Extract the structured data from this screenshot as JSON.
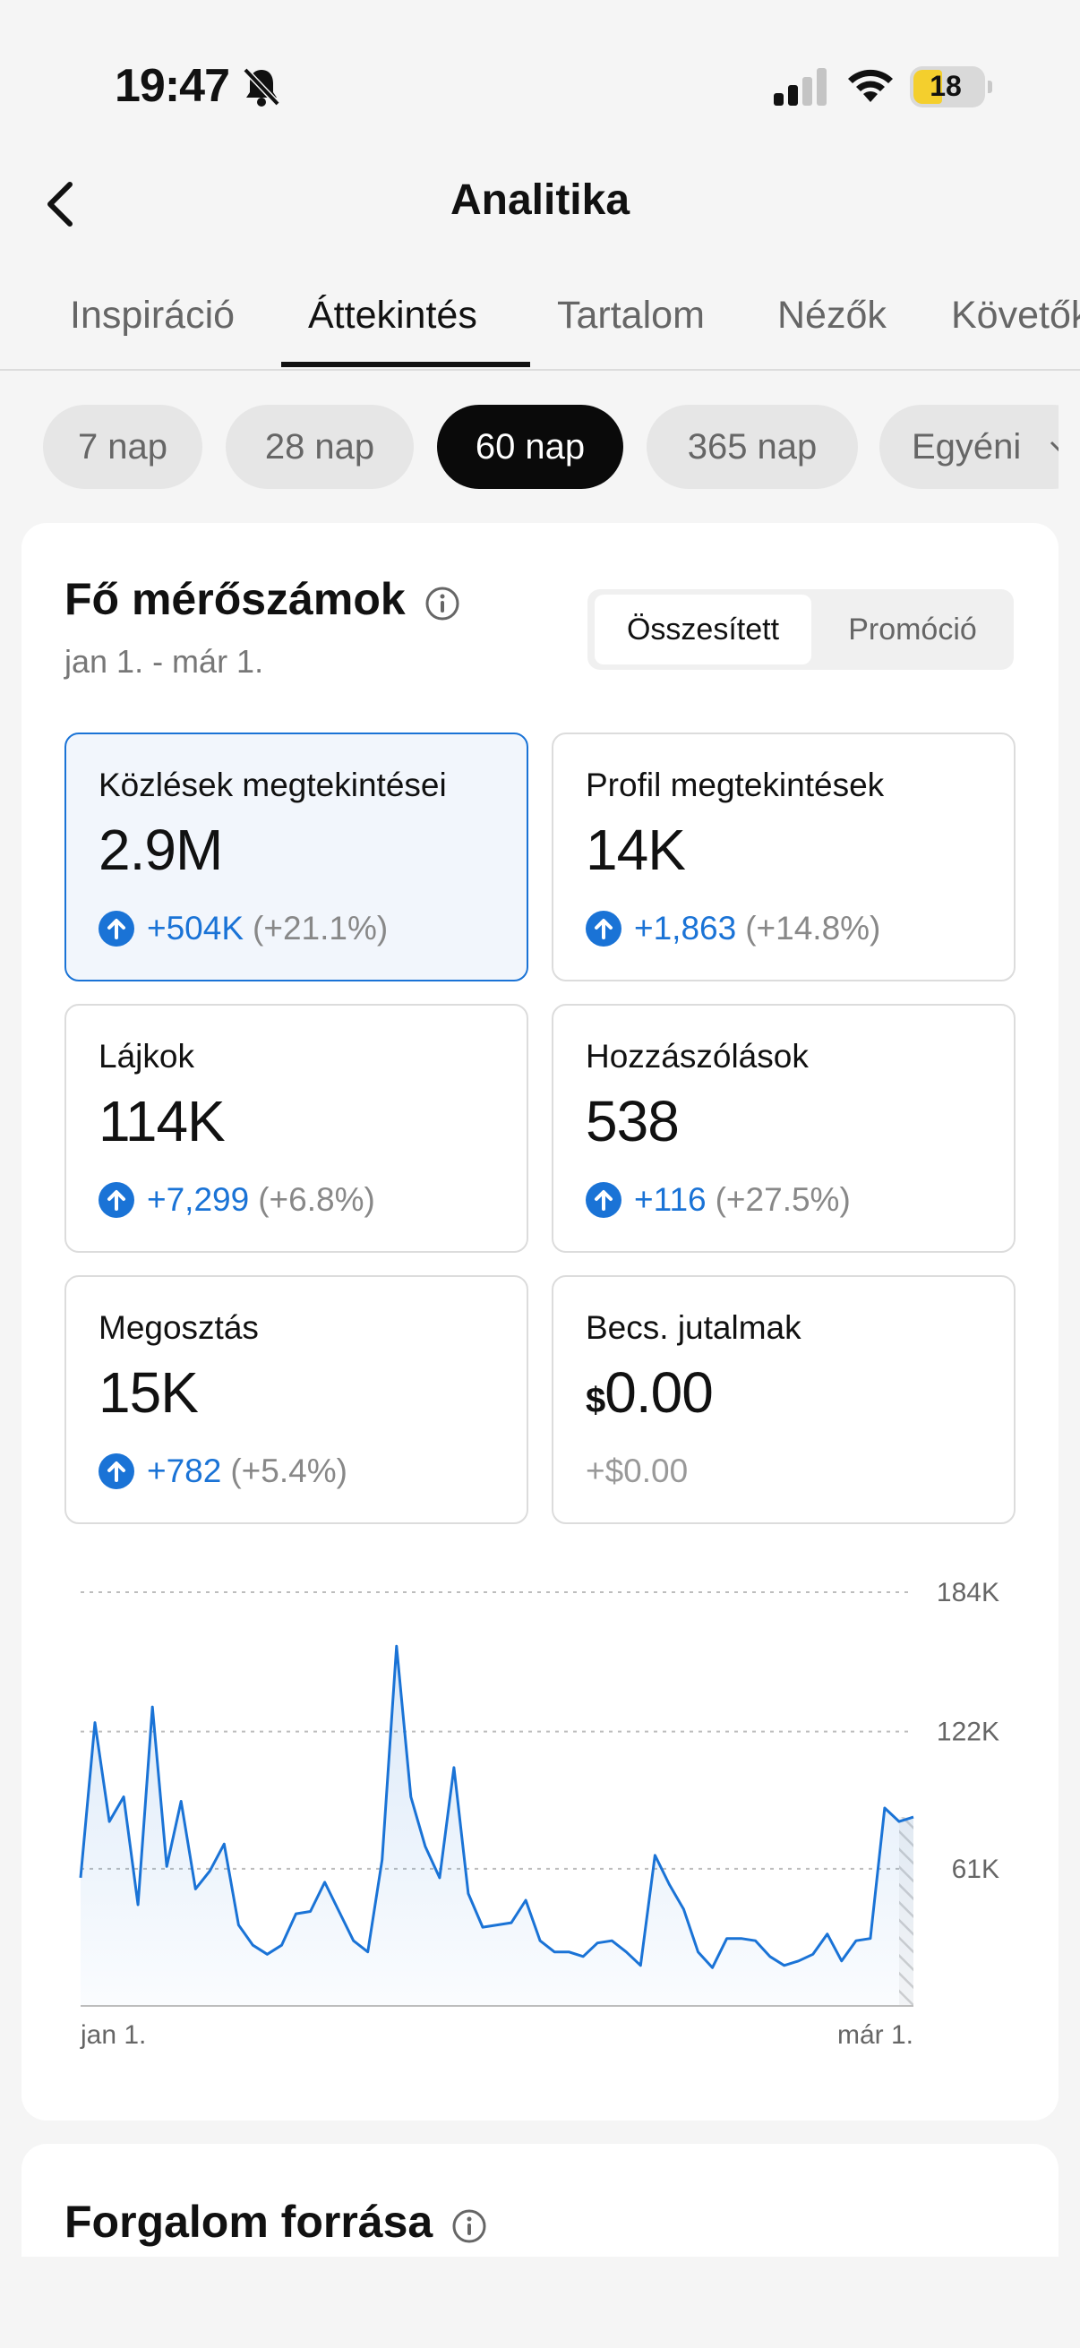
{
  "status_bar": {
    "time": "19:47",
    "battery": "18"
  },
  "header": {
    "title": "Analitika"
  },
  "tabs": [
    "Inspiráció",
    "Áttekintés",
    "Tartalom",
    "Nézők",
    "Követők"
  ],
  "periods": [
    "7 nap",
    "28 nap",
    "60 nap",
    "365 nap",
    "Egyéni"
  ],
  "key_metrics": {
    "title": "Fő mérőszámok",
    "date_range": "jan 1. - már 1.",
    "segment": {
      "active": "Összesített",
      "inactive": "Promóció"
    },
    "cards": [
      {
        "label": "Közlések megtekintései",
        "value": "2.9M",
        "delta": "+504K",
        "pct": "(+21.1%)"
      },
      {
        "label": "Profil megtekintések",
        "value": "14K",
        "delta": "+1,863",
        "pct": "(+14.8%)"
      },
      {
        "label": "Lájkok",
        "value": "114K",
        "delta": "+7,299",
        "pct": "(+6.8%)"
      },
      {
        "label": "Hozzászólások",
        "value": "538",
        "delta": "+116",
        "pct": "(+27.5%)"
      },
      {
        "label": "Megosztás",
        "value": "15K",
        "delta": "+782",
        "pct": "(+5.4%)"
      },
      {
        "label": "Becs. jutalmak",
        "currency": "$",
        "value": "0.00",
        "change": "+$0.00"
      }
    ]
  },
  "chart_data": {
    "type": "area",
    "y_ticks": [
      "184K",
      "122K",
      "61K"
    ],
    "ylim": [
      0,
      184000
    ],
    "tick_values": [
      184000,
      122000,
      61000
    ],
    "x_labels": [
      "jan 1.",
      "már 1."
    ],
    "accent": "#1a73d6",
    "values": [
      57000,
      126000,
      82000,
      93000,
      45000,
      133000,
      62000,
      91000,
      52000,
      60000,
      72000,
      36000,
      27000,
      23000,
      27000,
      41000,
      42000,
      55000,
      42000,
      29000,
      24000,
      65000,
      160000,
      93000,
      71000,
      57000,
      106000,
      50000,
      35000,
      36000,
      37000,
      47000,
      29000,
      24000,
      24000,
      22000,
      28000,
      29000,
      24000,
      18000,
      67000,
      54000,
      43000,
      24000,
      17000,
      30000,
      30000,
      29000,
      22000,
      18000,
      20000,
      23000,
      32000,
      20000,
      29000,
      30000,
      88000,
      82000,
      84000
    ]
  },
  "traffic": {
    "title": "Forgalom forrása"
  }
}
